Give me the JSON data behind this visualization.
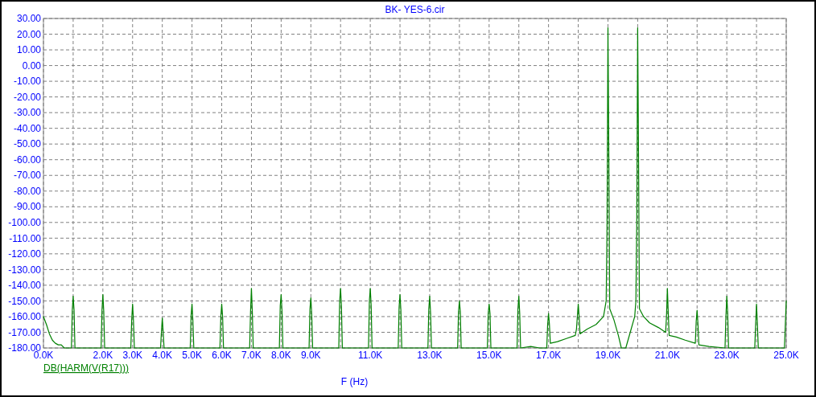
{
  "chart_data": {
    "type": "line",
    "title": "BK- YES-6.cir",
    "xlabel": "F (Hz)",
    "legend": "bottom left",
    "grid": true,
    "line_style": "solid",
    "xlim": [
      0,
      25000
    ],
    "ylim": [
      -180,
      30
    ],
    "xticks": [
      {
        "value": 0,
        "label": "0.0K"
      },
      {
        "value": 1000,
        "label": null
      },
      {
        "value": 2000,
        "label": "2.0K"
      },
      {
        "value": 3000,
        "label": "3.0K"
      },
      {
        "value": 4000,
        "label": "4.0K"
      },
      {
        "value": 5000,
        "label": "5.0K"
      },
      {
        "value": 6000,
        "label": "6.0K"
      },
      {
        "value": 7000,
        "label": "7.0K"
      },
      {
        "value": 8000,
        "label": "8.0K"
      },
      {
        "value": 9000,
        "label": "9.0K"
      },
      {
        "value": 10000,
        "label": null
      },
      {
        "value": 11000,
        "label": "11.0K"
      },
      {
        "value": 12000,
        "label": null
      },
      {
        "value": 13000,
        "label": "13.0K"
      },
      {
        "value": 14000,
        "label": null
      },
      {
        "value": 15000,
        "label": "15.0K"
      },
      {
        "value": 16000,
        "label": null
      },
      {
        "value": 17000,
        "label": "17.0K"
      },
      {
        "value": 18000,
        "label": null
      },
      {
        "value": 19000,
        "label": "19.0K"
      },
      {
        "value": 20000,
        "label": null
      },
      {
        "value": 21000,
        "label": "21.0K"
      },
      {
        "value": 22000,
        "label": null
      },
      {
        "value": 23000,
        "label": "23.0K"
      },
      {
        "value": 24000,
        "label": null
      },
      {
        "value": 25000,
        "label": "25.0K"
      }
    ],
    "yticks": [
      {
        "value": 30,
        "label": "30.00"
      },
      {
        "value": 20,
        "label": "20.00"
      },
      {
        "value": 10,
        "label": "10.00"
      },
      {
        "value": 0,
        "label": "0.00"
      },
      {
        "value": -10,
        "label": "-10.00"
      },
      {
        "value": -20,
        "label": "-20.00"
      },
      {
        "value": -30,
        "label": "-30.00"
      },
      {
        "value": -40,
        "label": "-40.00"
      },
      {
        "value": -50,
        "label": "-50.00"
      },
      {
        "value": -60,
        "label": "-60.00"
      },
      {
        "value": -70,
        "label": "-70.00"
      },
      {
        "value": -80,
        "label": "-80.00"
      },
      {
        "value": -90,
        "label": "-90.00"
      },
      {
        "value": -100,
        "label": "-100.00"
      },
      {
        "value": -110,
        "label": "-110.00"
      },
      {
        "value": -120,
        "label": "-120.00"
      },
      {
        "value": -130,
        "label": "-130.00"
      },
      {
        "value": -140,
        "label": "-140.00"
      },
      {
        "value": -150,
        "label": "-150.00"
      },
      {
        "value": -160,
        "label": "-160.00"
      },
      {
        "value": -170,
        "label": "-170.00"
      },
      {
        "value": -180,
        "label": "-180.00"
      }
    ],
    "series": [
      {
        "name": "DB(HARM(V(R17)))",
        "color": "#008000",
        "x": [
          0,
          100,
          200,
          300,
          400,
          500,
          600,
          700,
          940,
          970,
          1000,
          1030,
          1060,
          1940,
          1970,
          2000,
          2030,
          2060,
          2940,
          2970,
          3000,
          3030,
          3060,
          3940,
          3970,
          4000,
          4030,
          4060,
          4940,
          4970,
          5000,
          5030,
          5060,
          5940,
          5970,
          6000,
          6030,
          6060,
          6940,
          6970,
          7000,
          7030,
          7060,
          7940,
          7970,
          8000,
          8030,
          8060,
          8940,
          8970,
          9000,
          9030,
          9060,
          9940,
          9970,
          10000,
          10030,
          10060,
          10940,
          10970,
          11000,
          11030,
          11060,
          11940,
          11970,
          12000,
          12030,
          12060,
          12940,
          12970,
          13000,
          13030,
          13060,
          13940,
          13970,
          14000,
          14030,
          14060,
          14940,
          14970,
          15000,
          15030,
          15060,
          15940,
          15970,
          16000,
          16030,
          16060,
          16400,
          16700,
          16940,
          16970,
          17000,
          17030,
          17060,
          17300,
          17600,
          17900,
          17940,
          18000,
          18030,
          18060,
          18300,
          18600,
          18850,
          18940,
          18970,
          19000,
          19030,
          19060,
          19200,
          19350,
          19450,
          19600,
          19750,
          19900,
          19940,
          19970,
          20000,
          20030,
          20060,
          20200,
          20400,
          20700,
          20940,
          20970,
          21000,
          21030,
          21060,
          21300,
          21600,
          21940,
          21970,
          22000,
          22030,
          22060,
          22400,
          22940,
          22970,
          23000,
          23030,
          23060,
          23940,
          23970,
          24000,
          24030,
          24060,
          24940,
          24970,
          25000
        ],
        "values": [
          -160,
          -165,
          -171,
          -175,
          -177,
          -178,
          -178,
          -180,
          -180,
          -156,
          -147,
          -156,
          -180,
          -180,
          -156,
          -146,
          -157,
          -180,
          -180,
          -162,
          -152,
          -163,
          -180,
          -180,
          -170,
          -161,
          -170,
          -180,
          -180,
          -159,
          -152,
          -163,
          -180,
          -180,
          -160,
          -152,
          -160,
          -180,
          -180,
          -157,
          -142,
          -157,
          -180,
          -180,
          -153,
          -146,
          -157,
          -180,
          -180,
          -155,
          -148,
          -159,
          -180,
          -180,
          -150,
          -142,
          -154,
          -180,
          -180,
          -150,
          -142,
          -153,
          -180,
          -180,
          -154,
          -146,
          -156,
          -180,
          -180,
          -155,
          -147,
          -158,
          -180,
          -180,
          -157,
          -150,
          -157,
          -180,
          -180,
          -158,
          -152,
          -158,
          -180,
          -180,
          -155,
          -147,
          -158,
          -180,
          -179,
          -180,
          -180,
          -165,
          -158,
          -165,
          -177,
          -176,
          -174,
          -172,
          -168,
          -152,
          -160,
          -171,
          -168,
          -165,
          -160,
          -150,
          -100,
          24,
          -60,
          -155,
          -162,
          -172,
          -180,
          -180,
          -170,
          -160,
          -150,
          -100,
          24,
          -60,
          -155,
          -160,
          -164,
          -167,
          -170,
          -160,
          -142,
          -158,
          -172,
          -173,
          -175,
          -177,
          -163,
          -156,
          -165,
          -178,
          -179,
          -180,
          -160,
          -147,
          -158,
          -180,
          -180,
          -165,
          -152,
          -165,
          -180,
          -180,
          -165,
          -150
        ]
      }
    ]
  }
}
